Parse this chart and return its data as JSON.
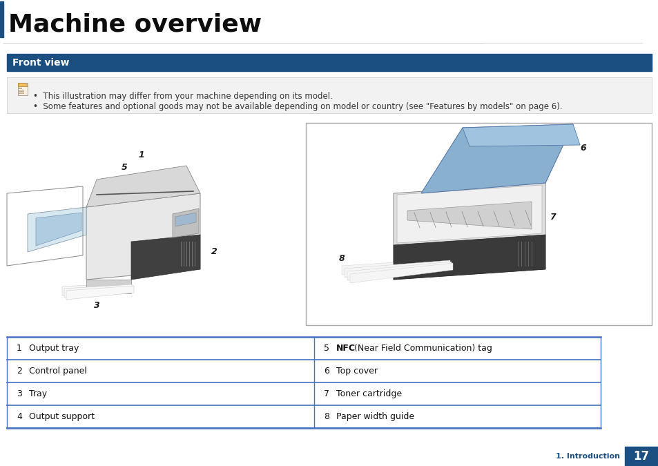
{
  "title": "Machine overview",
  "section_title": "Front view",
  "note_line1": "•  This illustration may differ from your machine depending on its model.",
  "note_line2": "•  Some features and optional goods may not be available depending on model or country (see \"Features by models\" on page 6).",
  "table_rows": [
    {
      "num": "1",
      "label": "Output tray",
      "num2": "5",
      "label2_bold": "NFC",
      "label2_rest": " (Near Field Communication) tag"
    },
    {
      "num": "2",
      "label": "Control panel",
      "num2": "6",
      "label2_bold": "",
      "label2_rest": "Top cover"
    },
    {
      "num": "3",
      "label": "Tray",
      "num2": "7",
      "label2_bold": "",
      "label2_rest": "Toner cartridge"
    },
    {
      "num": "4",
      "label": "Output support",
      "num2": "8",
      "label2_bold": "",
      "label2_rest": "Paper width guide"
    }
  ],
  "footer_text": "1. Introduction",
  "footer_num": "17",
  "title_color": "#0d0d0d",
  "section_bg": "#1b4f82",
  "section_text_color": "#ffffff",
  "table_line_color": "#4472c4",
  "note_bg": "#f2f2f2",
  "note_border": "#d0d0d0",
  "footer_bg": "#1b4f82",
  "page_bg": "#ffffff",
  "left_bar_color": "#1b4f82"
}
